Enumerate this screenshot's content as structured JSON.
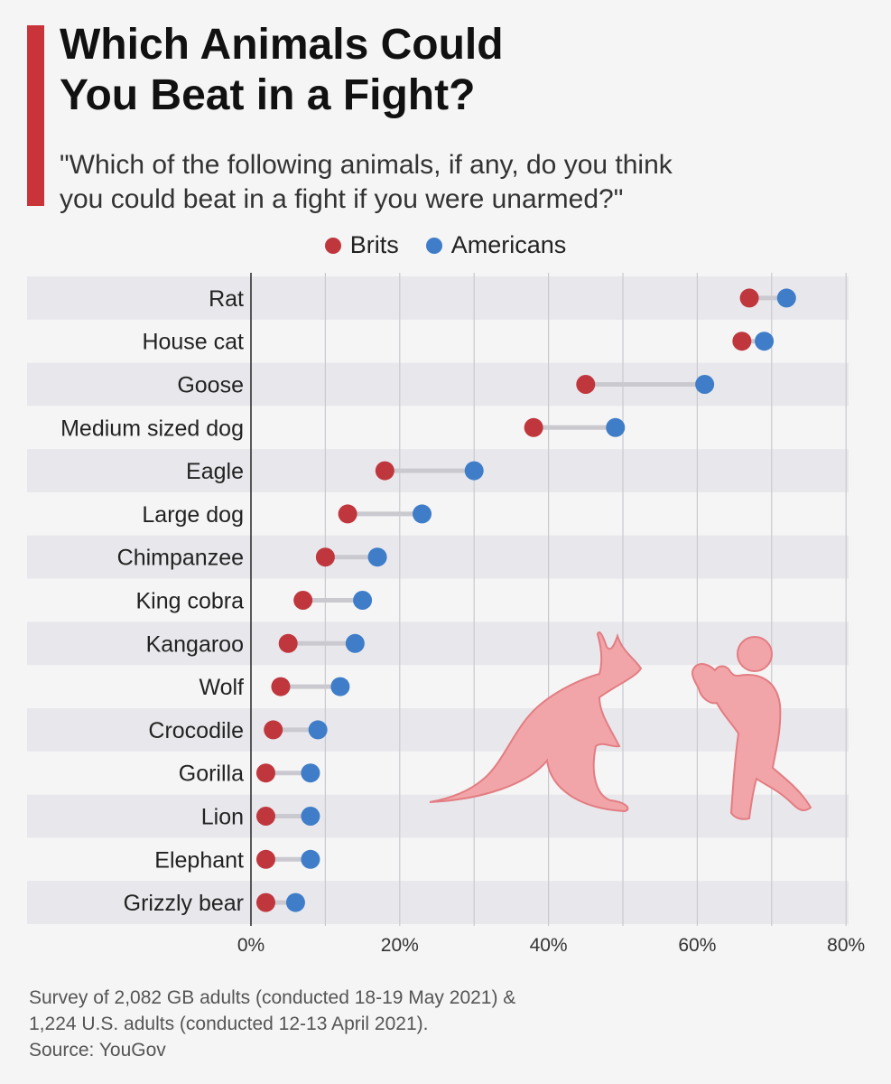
{
  "header": {
    "title_line1": "Which Animals Could",
    "title_line2": "You Beat in a Fight?",
    "subtitle_line1": "\"Which of the following animals, if any, do you think",
    "subtitle_line2": "you could beat in a fight if you were unarmed?\""
  },
  "colors": {
    "brits": "#c0363d",
    "americans": "#3f7dc9",
    "accent": "#c8343a",
    "illustration": "#f2a5a8"
  },
  "icons": [
    "kangaroo-icon",
    "boxer-icon"
  ],
  "chart_data": {
    "type": "dumbbell",
    "categories": [
      "Rat",
      "House cat",
      "Goose",
      "Medium sized dog",
      "Eagle",
      "Large dog",
      "Chimpanzee",
      "King cobra",
      "Kangaroo",
      "Wolf",
      "Crocodile",
      "Gorilla",
      "Lion",
      "Elephant",
      "Grizzly bear"
    ],
    "series": [
      {
        "name": "Brits",
        "values": [
          67,
          66,
          45,
          38,
          18,
          13,
          10,
          7,
          5,
          4,
          3,
          2,
          2,
          2,
          2
        ]
      },
      {
        "name": "Americans",
        "values": [
          72,
          69,
          61,
          49,
          30,
          23,
          17,
          15,
          14,
          12,
          9,
          8,
          8,
          8,
          6
        ]
      }
    ],
    "x_ticks": [
      "0%",
      "20%",
      "40%",
      "60%",
      "80%"
    ],
    "xlim": [
      0,
      80
    ],
    "grid": true,
    "legend_position": "top-center"
  },
  "footer": {
    "line1": "Survey of 2,082 GB adults (conducted 18-19 May 2021) &",
    "line2": "1,224 U.S. adults (conducted 12-13 April 2021).",
    "source": "Source: YouGov"
  }
}
